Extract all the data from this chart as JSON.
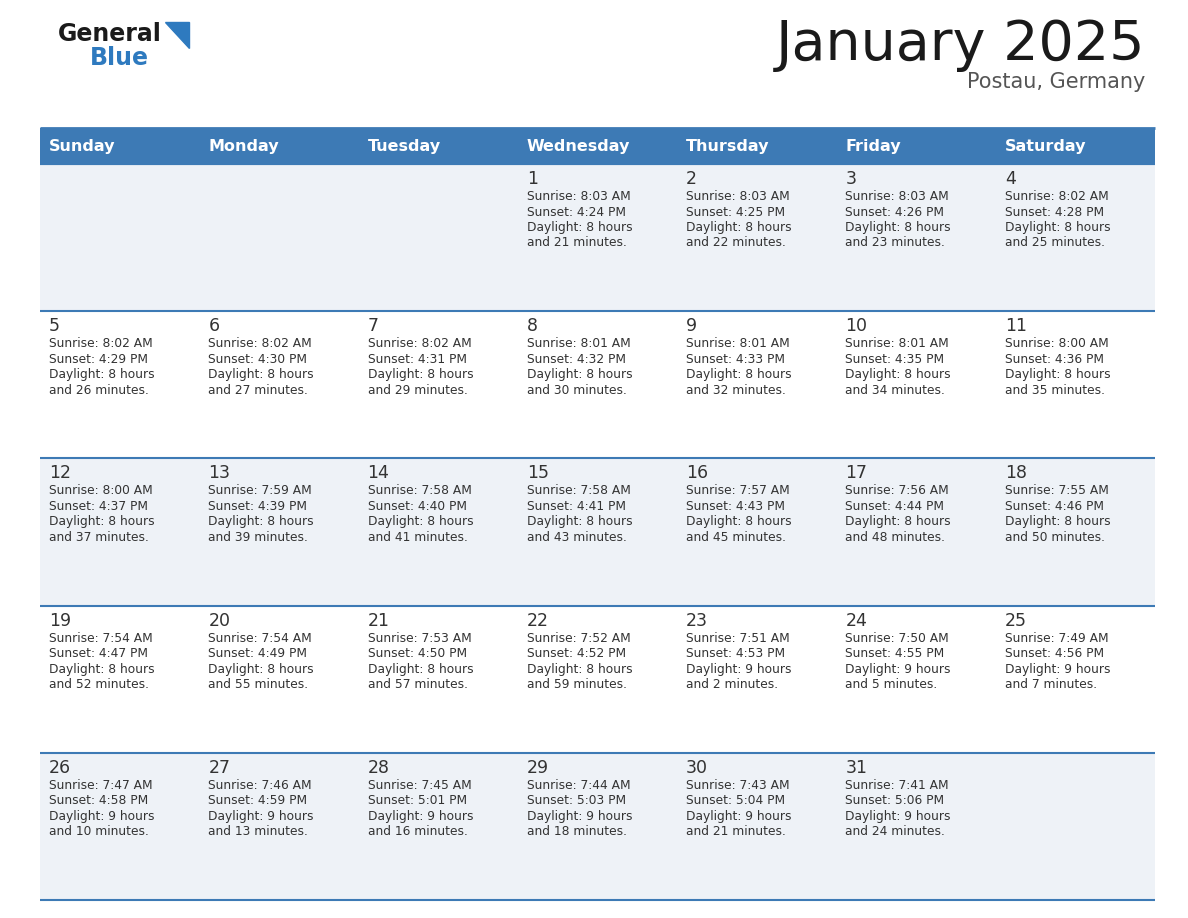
{
  "title": "January 2025",
  "subtitle": "Postau, Germany",
  "days_of_week": [
    "Sunday",
    "Monday",
    "Tuesday",
    "Wednesday",
    "Thursday",
    "Friday",
    "Saturday"
  ],
  "header_bg": "#3d7ab5",
  "header_text": "#ffffff",
  "row_bg_odd": "#eef2f7",
  "row_bg_even": "#ffffff",
  "cell_text": "#333333",
  "border_color": "#3d7ab5",
  "title_color": "#1a1a1a",
  "subtitle_color": "#555555",
  "logo_general_color": "#1a1a1a",
  "logo_blue_color": "#2e7abf",
  "calendar_data": [
    [
      null,
      null,
      null,
      {
        "day": 1,
        "sunrise": "8:03 AM",
        "sunset": "4:24 PM",
        "daylight": "8 hours and 21 minutes."
      },
      {
        "day": 2,
        "sunrise": "8:03 AM",
        "sunset": "4:25 PM",
        "daylight": "8 hours and 22 minutes."
      },
      {
        "day": 3,
        "sunrise": "8:03 AM",
        "sunset": "4:26 PM",
        "daylight": "8 hours and 23 minutes."
      },
      {
        "day": 4,
        "sunrise": "8:02 AM",
        "sunset": "4:28 PM",
        "daylight": "8 hours and 25 minutes."
      }
    ],
    [
      {
        "day": 5,
        "sunrise": "8:02 AM",
        "sunset": "4:29 PM",
        "daylight": "8 hours and 26 minutes."
      },
      {
        "day": 6,
        "sunrise": "8:02 AM",
        "sunset": "4:30 PM",
        "daylight": "8 hours and 27 minutes."
      },
      {
        "day": 7,
        "sunrise": "8:02 AM",
        "sunset": "4:31 PM",
        "daylight": "8 hours and 29 minutes."
      },
      {
        "day": 8,
        "sunrise": "8:01 AM",
        "sunset": "4:32 PM",
        "daylight": "8 hours and 30 minutes."
      },
      {
        "day": 9,
        "sunrise": "8:01 AM",
        "sunset": "4:33 PM",
        "daylight": "8 hours and 32 minutes."
      },
      {
        "day": 10,
        "sunrise": "8:01 AM",
        "sunset": "4:35 PM",
        "daylight": "8 hours and 34 minutes."
      },
      {
        "day": 11,
        "sunrise": "8:00 AM",
        "sunset": "4:36 PM",
        "daylight": "8 hours and 35 minutes."
      }
    ],
    [
      {
        "day": 12,
        "sunrise": "8:00 AM",
        "sunset": "4:37 PM",
        "daylight": "8 hours and 37 minutes."
      },
      {
        "day": 13,
        "sunrise": "7:59 AM",
        "sunset": "4:39 PM",
        "daylight": "8 hours and 39 minutes."
      },
      {
        "day": 14,
        "sunrise": "7:58 AM",
        "sunset": "4:40 PM",
        "daylight": "8 hours and 41 minutes."
      },
      {
        "day": 15,
        "sunrise": "7:58 AM",
        "sunset": "4:41 PM",
        "daylight": "8 hours and 43 minutes."
      },
      {
        "day": 16,
        "sunrise": "7:57 AM",
        "sunset": "4:43 PM",
        "daylight": "8 hours and 45 minutes."
      },
      {
        "day": 17,
        "sunrise": "7:56 AM",
        "sunset": "4:44 PM",
        "daylight": "8 hours and 48 minutes."
      },
      {
        "day": 18,
        "sunrise": "7:55 AM",
        "sunset": "4:46 PM",
        "daylight": "8 hours and 50 minutes."
      }
    ],
    [
      {
        "day": 19,
        "sunrise": "7:54 AM",
        "sunset": "4:47 PM",
        "daylight": "8 hours and 52 minutes."
      },
      {
        "day": 20,
        "sunrise": "7:54 AM",
        "sunset": "4:49 PM",
        "daylight": "8 hours and 55 minutes."
      },
      {
        "day": 21,
        "sunrise": "7:53 AM",
        "sunset": "4:50 PM",
        "daylight": "8 hours and 57 minutes."
      },
      {
        "day": 22,
        "sunrise": "7:52 AM",
        "sunset": "4:52 PM",
        "daylight": "8 hours and 59 minutes."
      },
      {
        "day": 23,
        "sunrise": "7:51 AM",
        "sunset": "4:53 PM",
        "daylight": "9 hours and 2 minutes."
      },
      {
        "day": 24,
        "sunrise": "7:50 AM",
        "sunset": "4:55 PM",
        "daylight": "9 hours and 5 minutes."
      },
      {
        "day": 25,
        "sunrise": "7:49 AM",
        "sunset": "4:56 PM",
        "daylight": "9 hours and 7 minutes."
      }
    ],
    [
      {
        "day": 26,
        "sunrise": "7:47 AM",
        "sunset": "4:58 PM",
        "daylight": "9 hours and 10 minutes."
      },
      {
        "day": 27,
        "sunrise": "7:46 AM",
        "sunset": "4:59 PM",
        "daylight": "9 hours and 13 minutes."
      },
      {
        "day": 28,
        "sunrise": "7:45 AM",
        "sunset": "5:01 PM",
        "daylight": "9 hours and 16 minutes."
      },
      {
        "day": 29,
        "sunrise": "7:44 AM",
        "sunset": "5:03 PM",
        "daylight": "9 hours and 18 minutes."
      },
      {
        "day": 30,
        "sunrise": "7:43 AM",
        "sunset": "5:04 PM",
        "daylight": "9 hours and 21 minutes."
      },
      {
        "day": 31,
        "sunrise": "7:41 AM",
        "sunset": "5:06 PM",
        "daylight": "9 hours and 24 minutes."
      },
      null
    ]
  ]
}
